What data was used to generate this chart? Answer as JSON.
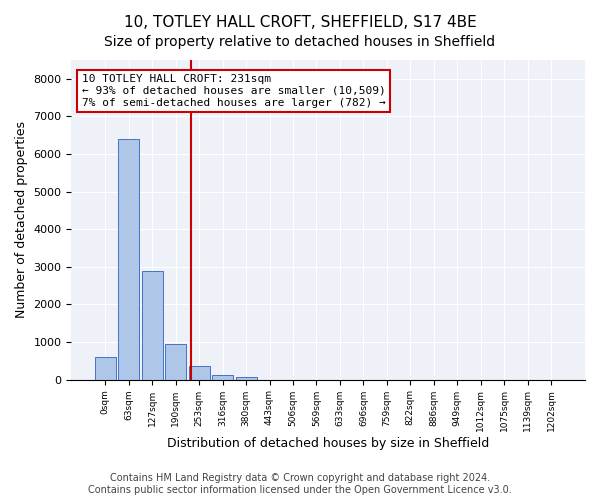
{
  "title1": "10, TOTLEY HALL CROFT, SHEFFIELD, S17 4BE",
  "title2": "Size of property relative to detached houses in Sheffield",
  "xlabel": "Distribution of detached houses by size in Sheffield",
  "ylabel": "Number of detached properties",
  "bar_values": [
    600,
    6400,
    2900,
    960,
    360,
    130,
    70,
    0,
    0,
    0,
    0,
    0,
    0,
    0,
    0,
    0,
    0,
    0,
    0,
    0
  ],
  "bar_labels": [
    "0sqm",
    "63sqm",
    "127sqm",
    "190sqm",
    "253sqm",
    "316sqm",
    "380sqm",
    "443sqm",
    "506sqm",
    "569sqm",
    "633sqm",
    "696sqm",
    "759sqm",
    "822sqm",
    "886sqm",
    "949sqm",
    "1012sqm",
    "1075sqm",
    "1139sqm",
    "1202sqm"
  ],
  "bar_color": "#aec6e8",
  "bar_edge_color": "#4472c4",
  "background_color": "#eef2f8",
  "grid_color": "#ffffff",
  "annotation_box_color": "#cc0000",
  "red_line_x": 3.67,
  "annotation_text": "10 TOTLEY HALL CROFT: 231sqm\n← 93% of detached houses are smaller (10,509)\n7% of semi-detached houses are larger (782) →",
  "ylim": [
    0,
    8500
  ],
  "yticks": [
    0,
    1000,
    2000,
    3000,
    4000,
    5000,
    6000,
    7000,
    8000
  ],
  "footer": "Contains HM Land Registry data © Crown copyright and database right 2024.\nContains public sector information licensed under the Open Government Licence v3.0.",
  "title1_fontsize": 11,
  "title2_fontsize": 10,
  "xlabel_fontsize": 9,
  "ylabel_fontsize": 9,
  "annotation_fontsize": 8,
  "footer_fontsize": 7
}
